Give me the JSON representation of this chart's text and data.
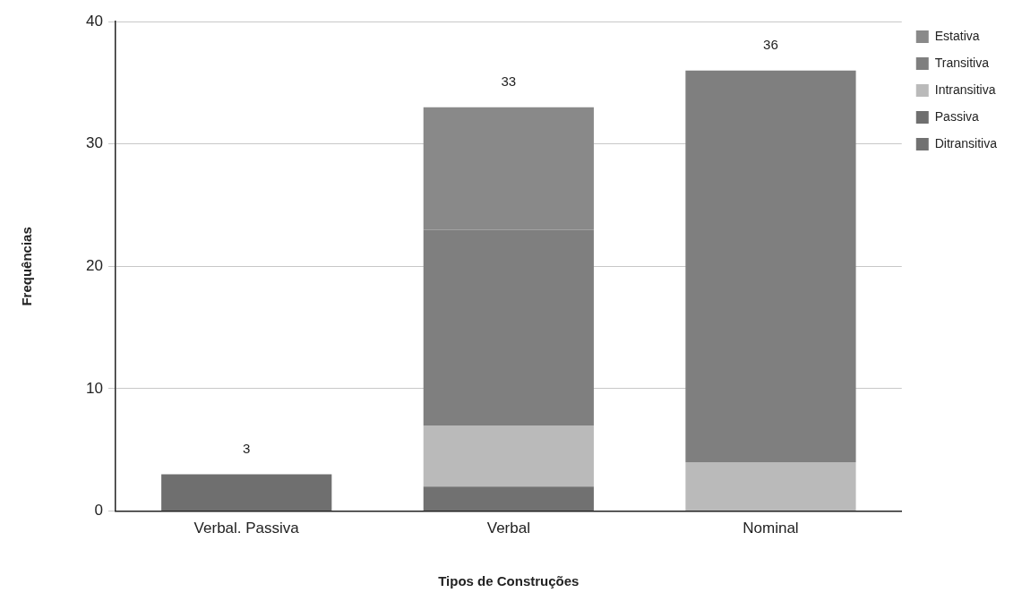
{
  "chart_data": {
    "type": "bar",
    "stacked": true,
    "xlabel": "Tipos de Construções",
    "ylabel": "Frequências",
    "categories": [
      "Verbal. Passiva",
      "Verbal",
      "Nominal"
    ],
    "series": [
      {
        "name": "Ditransitiva",
        "color": "#717171",
        "values": [
          0,
          2,
          0
        ]
      },
      {
        "name": "Passiva",
        "color": "#6f6f6f",
        "values": [
          3,
          0,
          0
        ]
      },
      {
        "name": "Intransitiva",
        "color": "#bababa",
        "values": [
          0,
          5,
          4
        ]
      },
      {
        "name": "Transitiva",
        "color": "#7f7f7f",
        "values": [
          0,
          16,
          32
        ]
      },
      {
        "name": "Estativa",
        "color": "#898989",
        "values": [
          0,
          10,
          0
        ]
      }
    ],
    "totals": [
      "3",
      "33",
      "36"
    ],
    "ylim": [
      0,
      40
    ],
    "yticks": [
      0,
      10,
      20,
      30,
      40
    ],
    "grid": "y",
    "legend": "top right"
  }
}
